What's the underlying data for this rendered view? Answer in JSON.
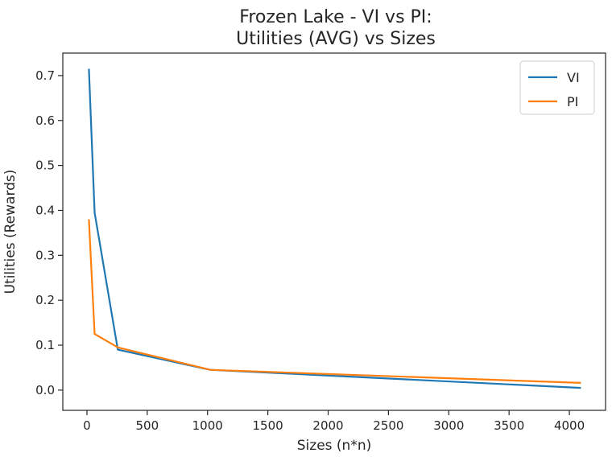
{
  "chart_data": {
    "type": "line",
    "title": [
      "Frozen Lake - VI vs PI:",
      "Utilities (AVG) vs Sizes"
    ],
    "xlabel": "Sizes (n*n)",
    "ylabel": "Utilities (Rewards)",
    "xlim": [
      -200,
      4300
    ],
    "ylim": [
      -0.045,
      0.75
    ],
    "xticks": [
      0,
      500,
      1000,
      1500,
      2000,
      2500,
      3000,
      3500,
      4000
    ],
    "yticks": [
      0.0,
      0.1,
      0.2,
      0.3,
      0.4,
      0.5,
      0.6,
      0.7
    ],
    "ytick_labels": [
      "0.0",
      "0.1",
      "0.2",
      "0.3",
      "0.4",
      "0.5",
      "0.6",
      "0.7"
    ],
    "legend_position": "top-right",
    "grid": false,
    "series": [
      {
        "name": "VI",
        "color": "#1f77b4",
        "x": [
          16,
          64,
          256,
          1024,
          4096
        ],
        "y": [
          0.715,
          0.395,
          0.09,
          0.045,
          0.005
        ]
      },
      {
        "name": "PI",
        "color": "#ff7f0e",
        "x": [
          16,
          64,
          256,
          1024,
          4096
        ],
        "y": [
          0.38,
          0.125,
          0.095,
          0.045,
          0.016
        ]
      }
    ]
  }
}
